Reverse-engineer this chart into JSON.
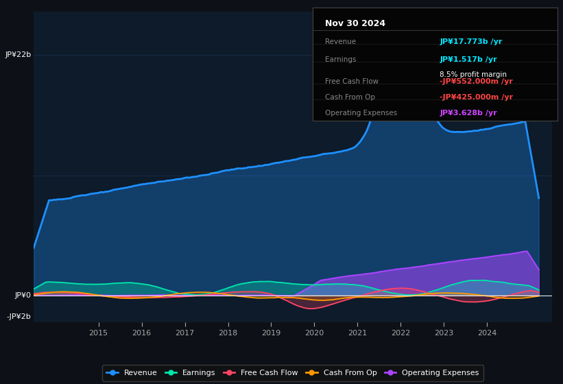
{
  "bg_color": "#0d1117",
  "plot_bg_color": "#0d1b2a",
  "title_box": {
    "date": "Nov 30 2024",
    "rows": [
      {
        "label": "Revenue",
        "value": "JP¥17.773b /yr",
        "value_color": "#00e5ff",
        "sub_value": null
      },
      {
        "label": "Earnings",
        "value": "JP¥1.517b /yr",
        "value_color": "#00e5ff",
        "sub_value": "8.5% profit margin"
      },
      {
        "label": "Free Cash Flow",
        "value": "-JP¥552.000m /yr",
        "value_color": "#ff4444",
        "sub_value": null
      },
      {
        "label": "Cash From Op",
        "value": "-JP¥425.000m /yr",
        "value_color": "#ff4444",
        "sub_value": null
      },
      {
        "label": "Operating Expenses",
        "value": "JP¥3.628b /yr",
        "value_color": "#cc44ff",
        "sub_value": null
      }
    ]
  },
  "ylabel_top": "JP¥22b",
  "ylabel_zero": "JP¥0",
  "ylabel_neg": "-JP¥2b",
  "x_ticks": [
    2015,
    2016,
    2017,
    2018,
    2019,
    2020,
    2021,
    2022,
    2023,
    2024
  ],
  "grid_color": "#1e3050",
  "ymin": -2.5,
  "ymax": 26,
  "xmin": 2013.5,
  "xmax": 2025.5,
  "line_colors": {
    "revenue": "#1e90ff",
    "earnings": "#00e5aa",
    "fcf": "#ff4466",
    "cashfromop": "#ff9900",
    "opex": "#aa44ff"
  },
  "legend": [
    {
      "label": "Revenue",
      "color": "#1e90ff"
    },
    {
      "label": "Earnings",
      "color": "#00e5aa"
    },
    {
      "label": "Free Cash Flow",
      "color": "#ff4466"
    },
    {
      "label": "Cash From Op",
      "color": "#ff9900"
    },
    {
      "label": "Operating Expenses",
      "color": "#aa44ff"
    }
  ]
}
